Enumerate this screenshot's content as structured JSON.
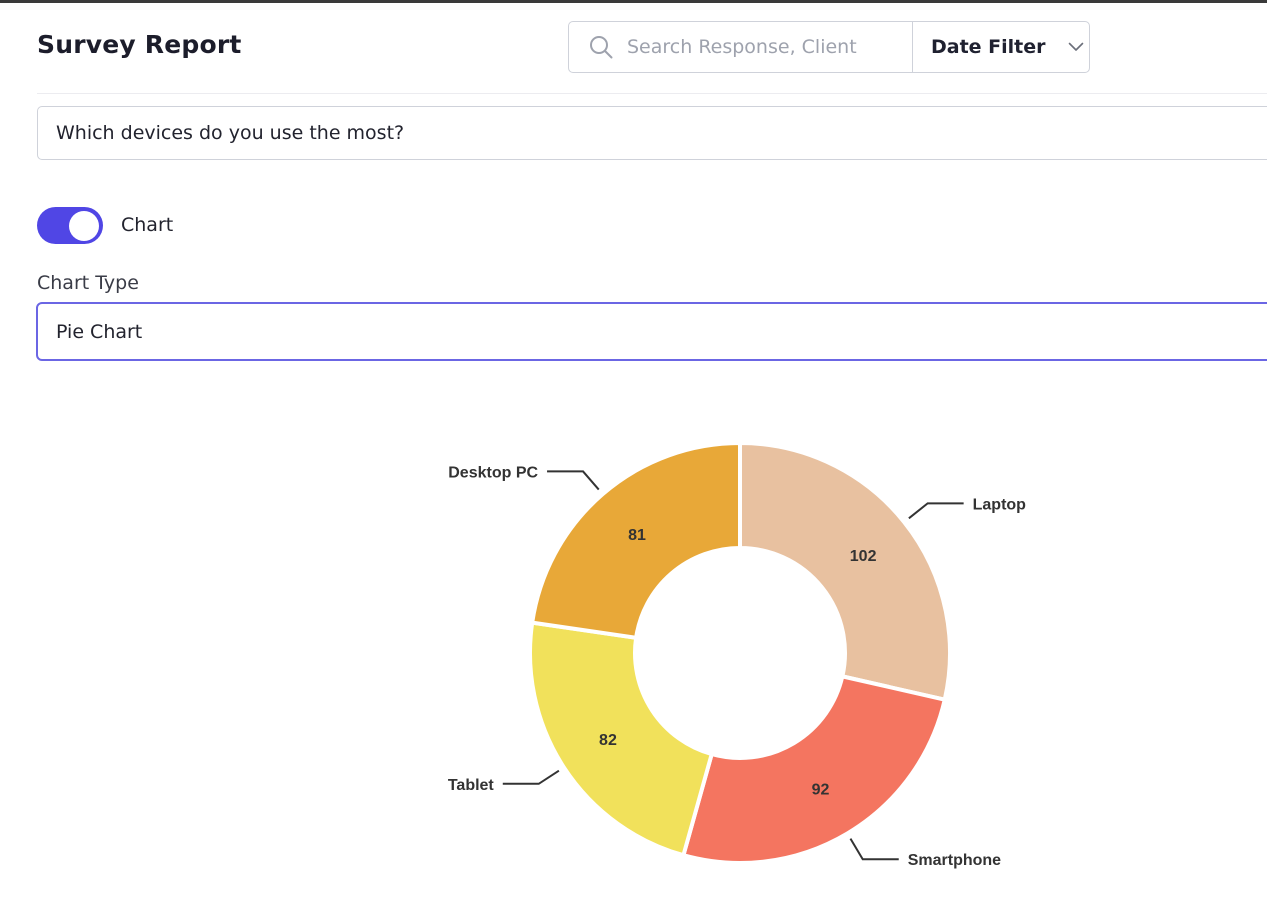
{
  "header": {
    "title": "Survey Report",
    "search_placeholder": "Search Response, Client",
    "date_filter_label": "Date Filter"
  },
  "question": "Which devices do you use the most?",
  "chart_toggle": {
    "label": "Chart",
    "enabled": true,
    "color": "#5046e5"
  },
  "chart_type": {
    "label": "Chart Type",
    "value": "Pie Chart"
  },
  "chart_data": {
    "type": "pie",
    "donut": true,
    "categories": [
      "Laptop",
      "Smartphone",
      "Tablet",
      "Desktop PC"
    ],
    "values": [
      102,
      92,
      82,
      81
    ],
    "colors": [
      "#e8c1a0",
      "#f47560",
      "#f1e15b",
      "#e8a838"
    ]
  }
}
